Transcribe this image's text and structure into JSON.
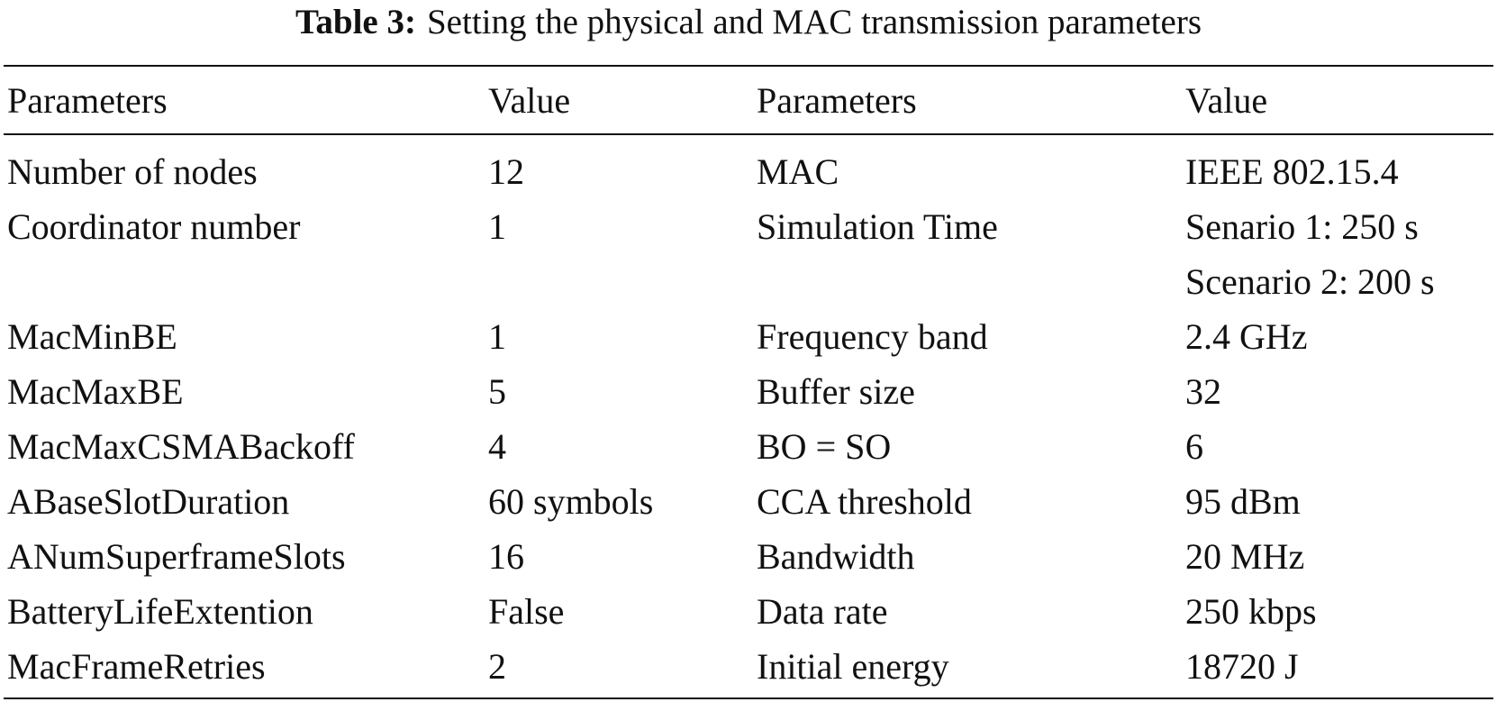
{
  "caption": {
    "label": "Table 3:",
    "text": "Setting the physical and MAC transmission parameters"
  },
  "table": {
    "header": [
      "Parameters",
      "Value",
      "Parameters",
      "Value"
    ],
    "rows": [
      [
        "Number of nodes",
        "12",
        "MAC",
        "IEEE 802.15.4"
      ],
      [
        "Coordinator number",
        "1",
        "Simulation Time",
        [
          "Senario 1: 250 s",
          "Scenario 2: 200 s"
        ]
      ],
      [
        "MacMinBE",
        "1",
        "Frequency band",
        "2.4 GHz"
      ],
      [
        "MacMaxBE",
        "5",
        "Buffer size",
        "32"
      ],
      [
        "MacMaxCSMABackoff",
        "4",
        "BO = SO",
        "6"
      ],
      [
        "ABaseSlotDuration",
        "60 symbols",
        "CCA threshold",
        "95 dBm"
      ],
      [
        "ANumSuperframeSlots",
        "16",
        "Bandwidth",
        "20 MHz"
      ],
      [
        "BatteryLifeExtention",
        "False",
        "Data rate",
        "250 kbps"
      ],
      [
        "MacFrameRetries",
        "2",
        "Initial energy",
        "18720 J"
      ]
    ]
  }
}
